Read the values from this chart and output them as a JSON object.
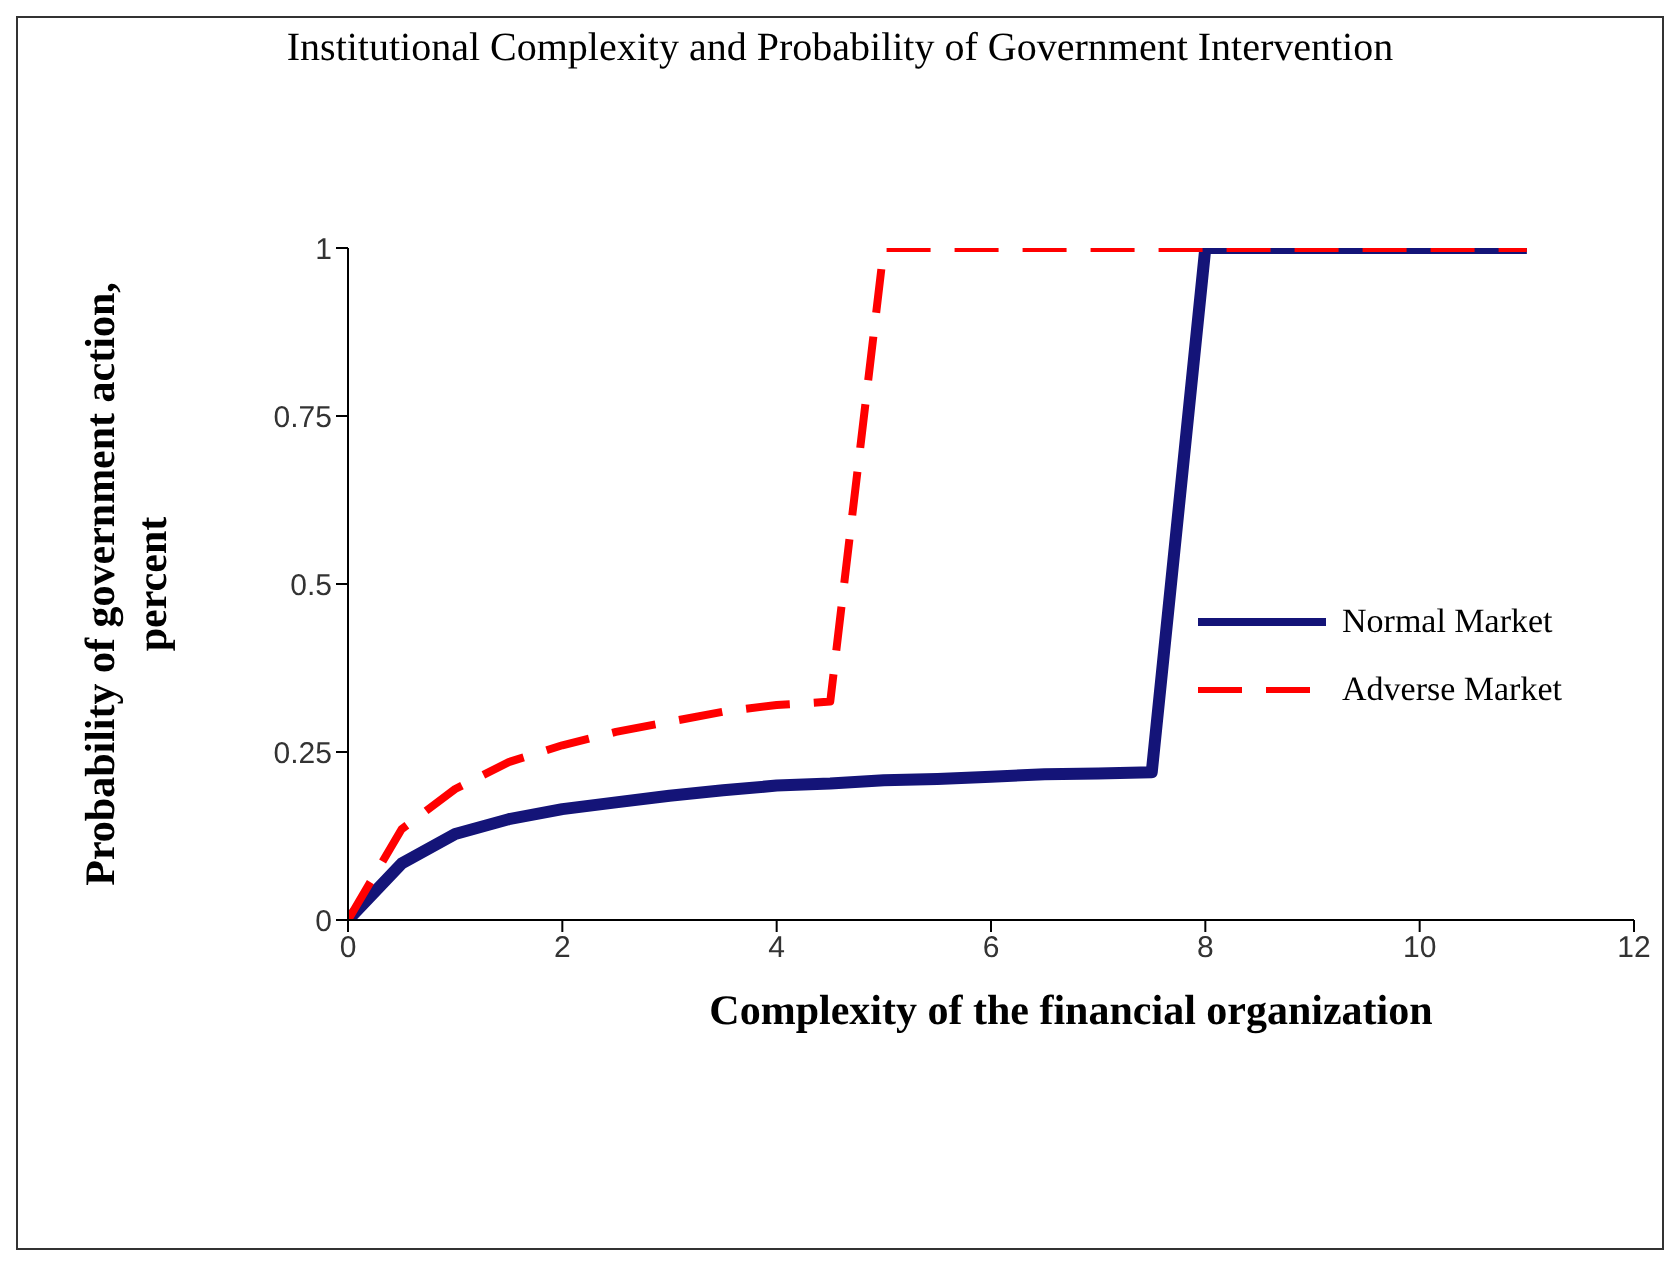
{
  "chart_data": {
    "type": "line",
    "title": "Institutional Complexity and Probability of Government Intervention",
    "xlabel": "Complexity of the financial organization",
    "ylabel": "Probability of government action, percent",
    "x": [
      0,
      0.5,
      1,
      1.5,
      2,
      2.5,
      3,
      3.5,
      4,
      4.5,
      5,
      5.5,
      6,
      6.5,
      7,
      7.5,
      8,
      8.5,
      9,
      9.5,
      10,
      10.5,
      11
    ],
    "series": [
      {
        "name": "Normal Market",
        "color": "#141478",
        "line_style": "solid",
        "values": [
          0,
          0.084,
          0.128,
          0.15,
          0.165,
          0.175,
          0.185,
          0.193,
          0.2,
          0.203,
          0.208,
          0.21,
          0.213,
          0.217,
          0.218,
          0.22,
          1,
          1,
          1,
          1,
          1,
          1,
          1
        ]
      },
      {
        "name": "Adverse Market",
        "color": "#ff0000",
        "line_style": "dashed",
        "values": [
          0,
          0.135,
          0.195,
          0.235,
          0.26,
          0.28,
          0.295,
          0.31,
          0.32,
          0.325,
          1,
          1,
          1,
          1,
          1,
          1,
          1,
          1,
          1,
          1,
          1,
          1,
          1
        ]
      }
    ],
    "xlim": [
      0,
      12
    ],
    "xticks": [
      0,
      2,
      4,
      6,
      8,
      10,
      12
    ],
    "ylim": [
      0,
      1
    ],
    "yticks": [
      0,
      0.25,
      0.5,
      0.75,
      1
    ],
    "grid": false,
    "legend": "right",
    "marker": "none"
  }
}
